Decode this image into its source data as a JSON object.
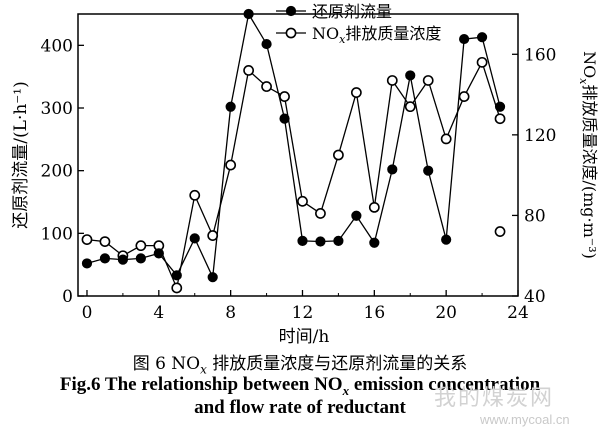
{
  "chart_data": {
    "type": "line",
    "x": [
      0,
      1,
      2,
      3,
      4,
      5,
      6,
      7,
      8,
      9,
      10,
      11,
      12,
      13,
      14,
      15,
      16,
      17,
      18,
      19,
      20,
      21,
      22,
      23
    ],
    "series": [
      {
        "name": "还原剂流量",
        "axis": "left",
        "marker": "filled-circle",
        "color": "#000000",
        "values": [
          52,
          60,
          58,
          60,
          68,
          33,
          92,
          30,
          302,
          450,
          402,
          283,
          88,
          87,
          88,
          128,
          85,
          202,
          352,
          200,
          90,
          410,
          413,
          302
        ]
      },
      {
        "name_prefix": "NO",
        "name_sub": "x",
        "name_suffix": "排放质量浓度",
        "axis": "right",
        "marker": "open-circle",
        "color": "#000000",
        "values": [
          68,
          67,
          60,
          65,
          65,
          44,
          90,
          70,
          105,
          152,
          144,
          139,
          87,
          81,
          110,
          141,
          84,
          147,
          134,
          147,
          118,
          139,
          156,
          128
        ],
        "extra_points": [
          {
            "x": 23,
            "y": 72
          }
        ]
      }
    ],
    "xlabel": "时间/h",
    "xticks": [
      0,
      4,
      8,
      12,
      16,
      20,
      24
    ],
    "xlim": [
      -0.5,
      24
    ],
    "ylabel_left": "还原剂流量/(L·h⁻¹)",
    "yticks_left": [
      0,
      100,
      200,
      300,
      400
    ],
    "ylim_left": [
      0,
      450
    ],
    "ylabel_right_prefix": "NO",
    "ylabel_right_sub": "x",
    "ylabel_right_suffix": "排放质量浓度/(mg·m⁻³)",
    "yticks_right": [
      40,
      80,
      120,
      160
    ],
    "ylim_right": [
      40,
      180
    ],
    "legend_position": "top-center",
    "grid": false
  },
  "caption": {
    "cn_prefix": "图 6 NO",
    "cn_sub": "x",
    "cn_suffix": " 排放质量浓度与还原剂流量的关系",
    "en_line1_prefix": "Fig.6 The relationship between NO",
    "en_line1_sub": "x",
    "en_line1_suffix": " emission concentration",
    "en_line2": "and flow rate of reductant"
  },
  "watermark": {
    "logo_text": "我的煤炭网",
    "url": "www.mycoal.cn"
  }
}
